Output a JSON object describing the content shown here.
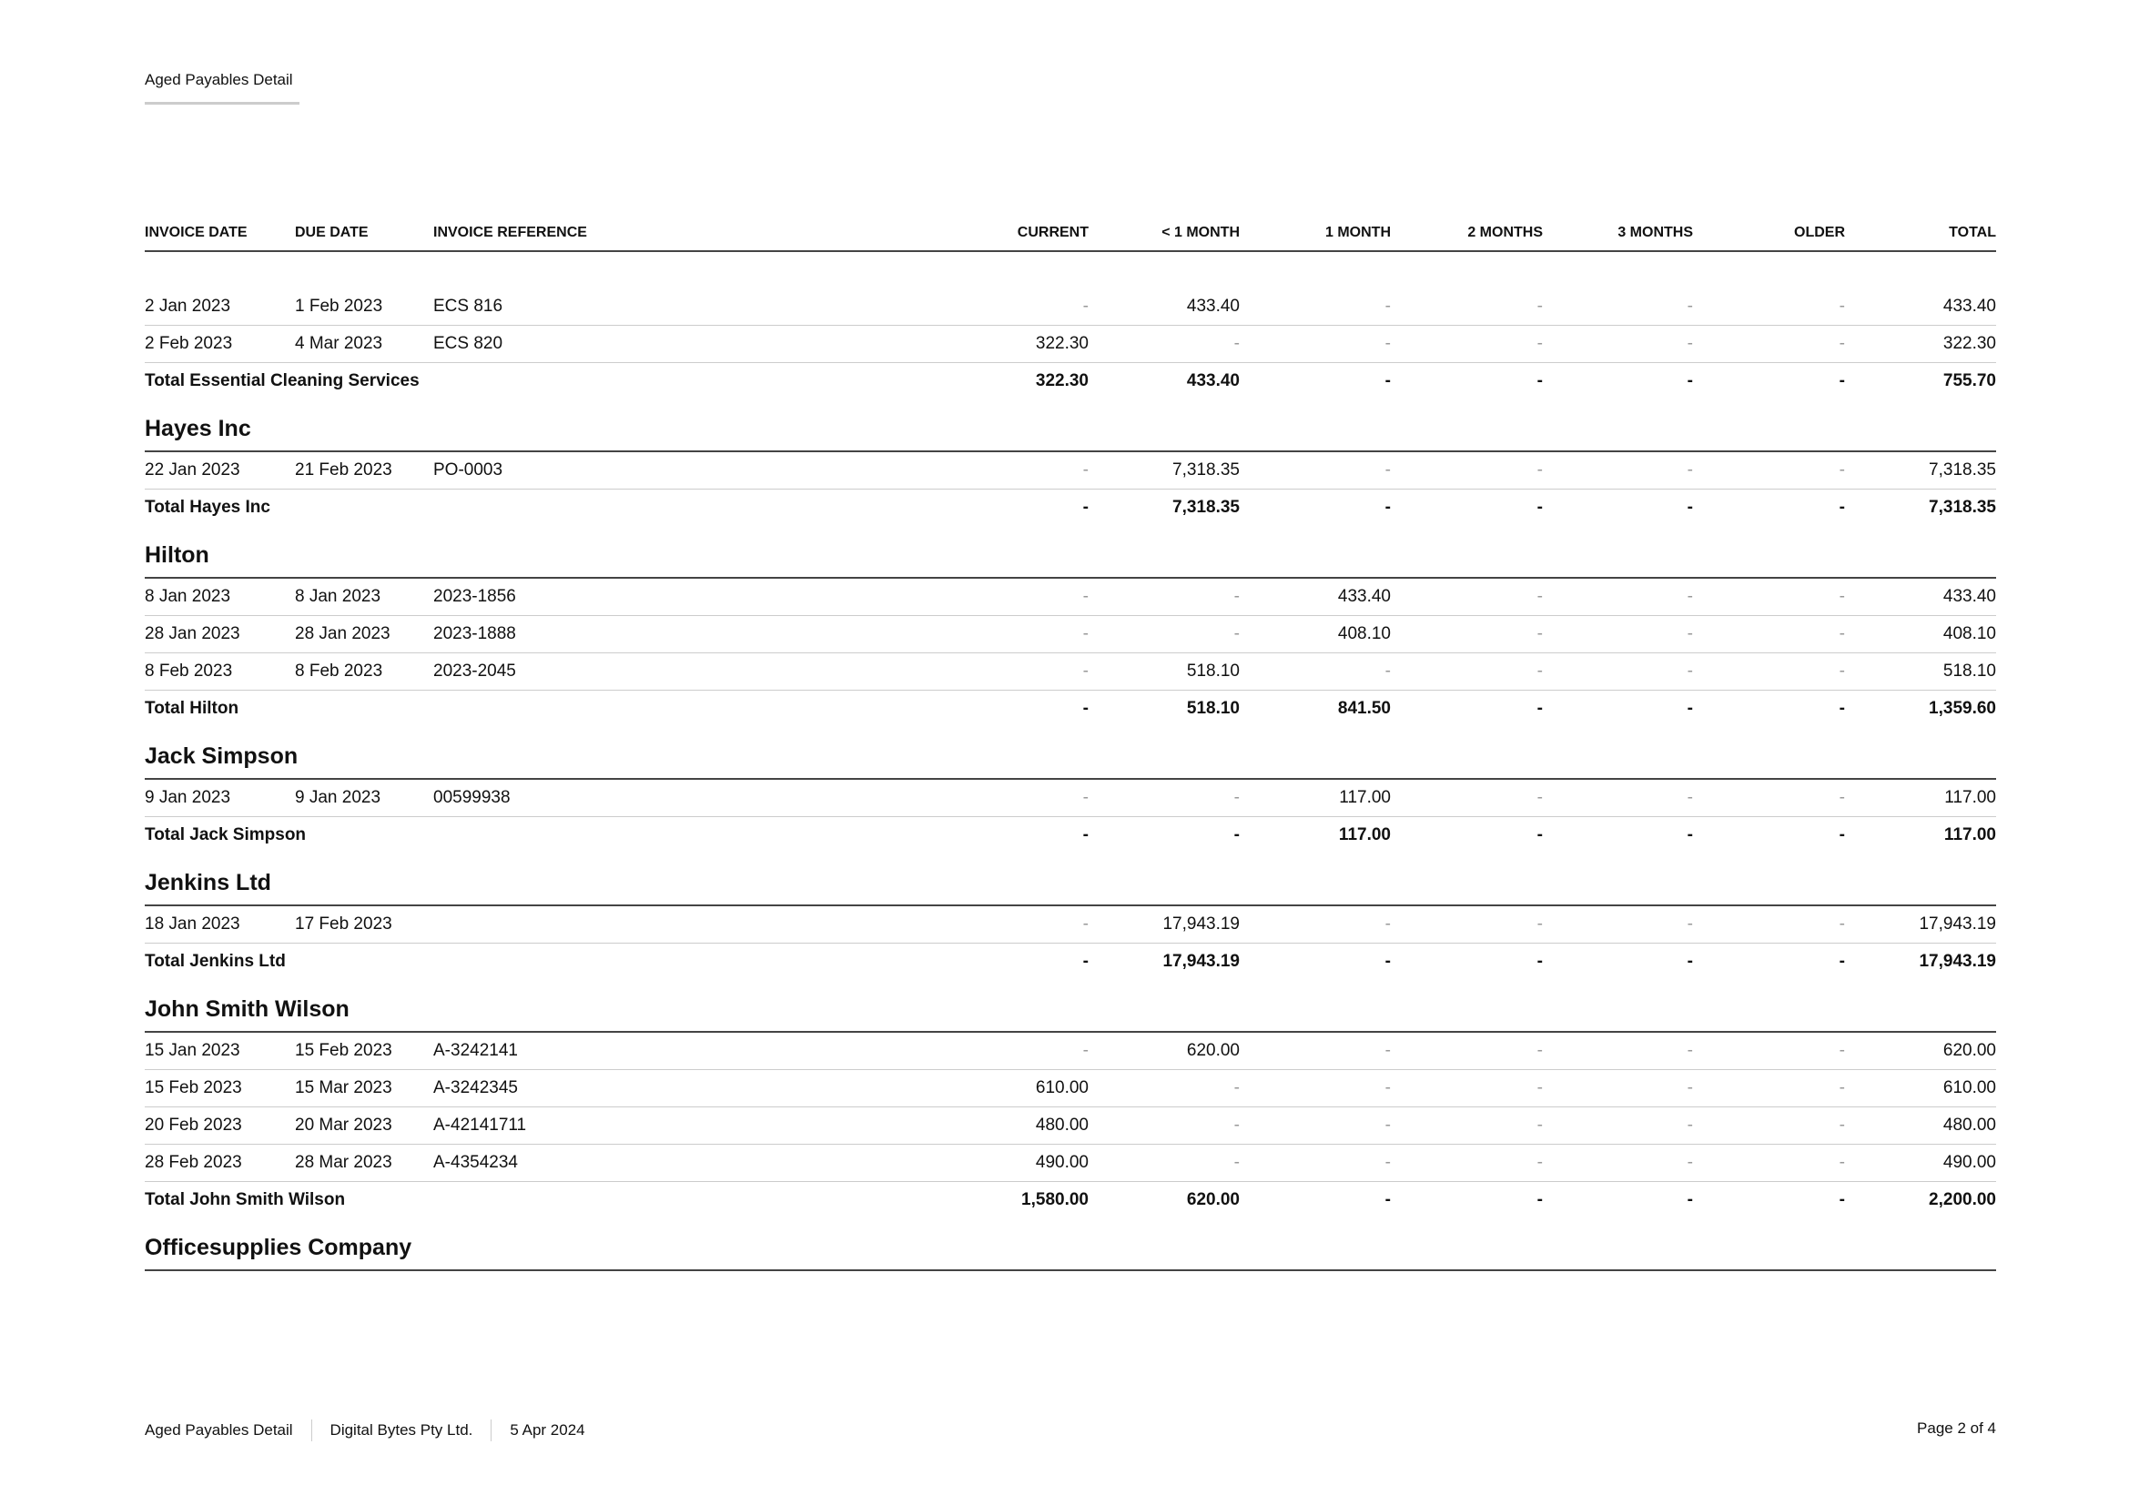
{
  "header": {
    "title": "Aged Payables Detail"
  },
  "columns": [
    "INVOICE DATE",
    "DUE DATE",
    "INVOICE REFERENCE",
    "CURRENT",
    "< 1 MONTH",
    "1 MONTH",
    "2 MONTHS",
    "3 MONTHS",
    "OLDER",
    "TOTAL"
  ],
  "groups": [
    {
      "name": "",
      "rows": [
        [
          "2 Jan 2023",
          "1 Feb 2023",
          "ECS 816",
          "-",
          "433.40",
          "-",
          "-",
          "-",
          "-",
          "433.40"
        ],
        [
          "2 Feb 2023",
          "4 Mar 2023",
          "ECS 820",
          "322.30",
          "-",
          "-",
          "-",
          "-",
          "-",
          "322.30"
        ]
      ],
      "total": [
        "Total Essential Cleaning Services",
        "322.30",
        "433.40",
        "-",
        "-",
        "-",
        "-",
        "755.70"
      ]
    },
    {
      "name": "Hayes Inc",
      "rows": [
        [
          "22 Jan 2023",
          "21 Feb 2023",
          "PO-0003",
          "-",
          "7,318.35",
          "-",
          "-",
          "-",
          "-",
          "7,318.35"
        ]
      ],
      "total": [
        "Total Hayes Inc",
        "-",
        "7,318.35",
        "-",
        "-",
        "-",
        "-",
        "7,318.35"
      ]
    },
    {
      "name": "Hilton",
      "rows": [
        [
          "8 Jan 2023",
          "8 Jan 2023",
          "2023-1856",
          "-",
          "-",
          "433.40",
          "-",
          "-",
          "-",
          "433.40"
        ],
        [
          "28 Jan 2023",
          "28 Jan 2023",
          "2023-1888",
          "-",
          "-",
          "408.10",
          "-",
          "-",
          "-",
          "408.10"
        ],
        [
          "8 Feb 2023",
          "8 Feb 2023",
          "2023-2045",
          "-",
          "518.10",
          "-",
          "-",
          "-",
          "-",
          "518.10"
        ]
      ],
      "total": [
        "Total Hilton",
        "-",
        "518.10",
        "841.50",
        "-",
        "-",
        "-",
        "1,359.60"
      ]
    },
    {
      "name": "Jack Simpson",
      "rows": [
        [
          "9 Jan 2023",
          "9 Jan 2023",
          "00599938",
          "-",
          "-",
          "117.00",
          "-",
          "-",
          "-",
          "117.00"
        ]
      ],
      "total": [
        "Total Jack Simpson",
        "-",
        "-",
        "117.00",
        "-",
        "-",
        "-",
        "117.00"
      ]
    },
    {
      "name": "Jenkins Ltd",
      "rows": [
        [
          "18 Jan 2023",
          "17 Feb 2023",
          "",
          "-",
          "17,943.19",
          "-",
          "-",
          "-",
          "-",
          "17,943.19"
        ]
      ],
      "total": [
        "Total Jenkins Ltd",
        "-",
        "17,943.19",
        "-",
        "-",
        "-",
        "-",
        "17,943.19"
      ]
    },
    {
      "name": "John Smith Wilson",
      "rows": [
        [
          "15 Jan 2023",
          "15 Feb 2023",
          "A-3242141",
          "-",
          "620.00",
          "-",
          "-",
          "-",
          "-",
          "620.00"
        ],
        [
          "15 Feb 2023",
          "15 Mar 2023",
          "A-3242345",
          "610.00",
          "-",
          "-",
          "-",
          "-",
          "-",
          "610.00"
        ],
        [
          "20 Feb 2023",
          "20 Mar 2023",
          "A-42141711",
          "480.00",
          "-",
          "-",
          "-",
          "-",
          "-",
          "480.00"
        ],
        [
          "28 Feb 2023",
          "28 Mar 2023",
          "A-4354234",
          "490.00",
          "-",
          "-",
          "-",
          "-",
          "-",
          "490.00"
        ]
      ],
      "total": [
        "Total John Smith Wilson",
        "1,580.00",
        "620.00",
        "-",
        "-",
        "-",
        "-",
        "2,200.00"
      ]
    },
    {
      "name": "Officesupplies Company",
      "rows": [],
      "total": null
    }
  ],
  "footer": {
    "report": "Aged Payables Detail",
    "company": "Digital Bytes Pty Ltd.",
    "date": "5 Apr 2024",
    "page": "Page 2 of 4"
  }
}
